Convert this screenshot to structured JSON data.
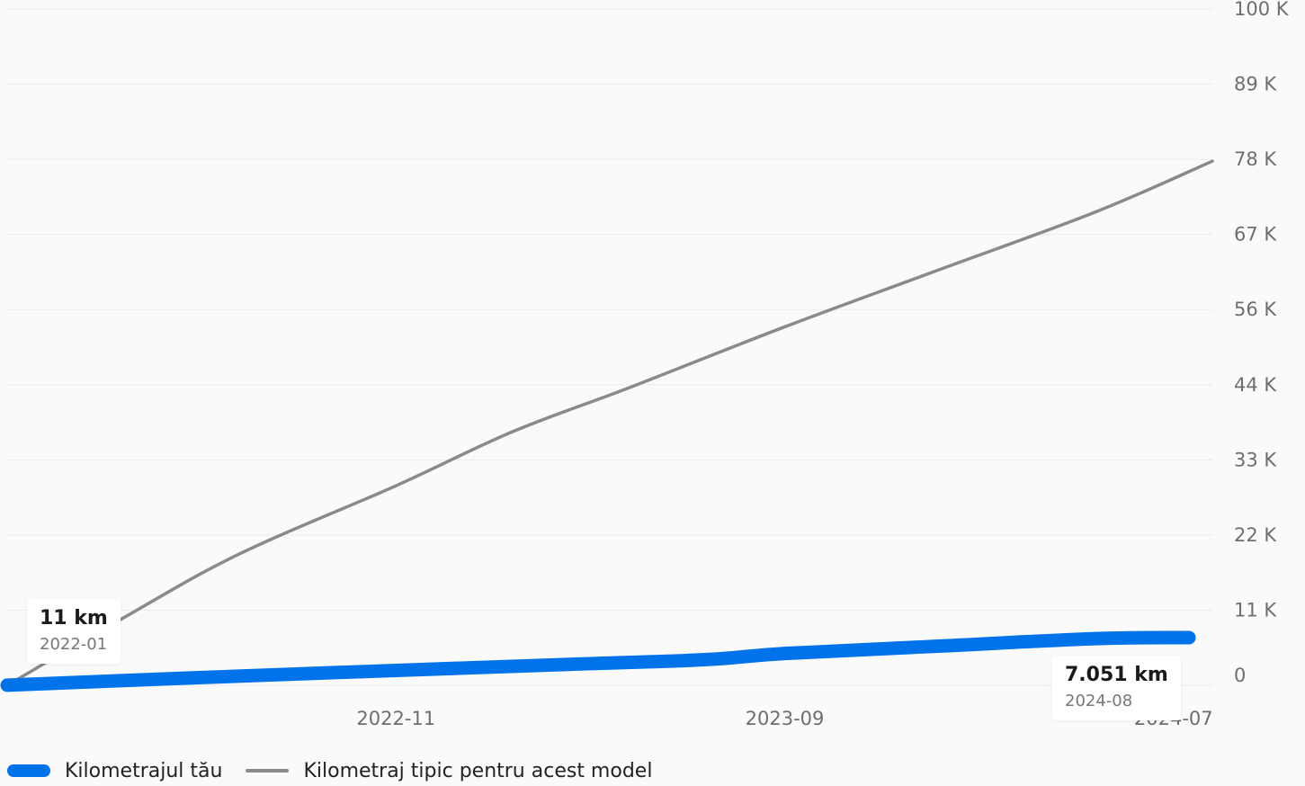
{
  "chart_data": {
    "type": "line",
    "x_axis": {
      "type": "date",
      "range": [
        "2022-01",
        "2024-08"
      ],
      "tick_labels": [
        "2022-11",
        "2023-09",
        "2024-07"
      ]
    },
    "y_axis": {
      "position": "right",
      "range": [
        0,
        100000
      ],
      "tick_values": [
        0,
        11111,
        22222,
        33333,
        44444,
        55556,
        66667,
        77778,
        88889,
        100000
      ],
      "tick_labels": [
        "0",
        "11 K",
        "22 K",
        "33 K",
        "44 K",
        "56 K",
        "67 K",
        "78 K",
        "89 K",
        "100 K"
      ]
    },
    "grid": true,
    "legend_placement": "bottom-left",
    "series": [
      {
        "name": "Kilometrajul tău",
        "color": "#0073ea",
        "style": "thick",
        "points": [
          {
            "x": "2022-01",
            "y": 11
          },
          {
            "x": "2022-06",
            "y": 1150
          },
          {
            "x": "2022-11",
            "y": 2200
          },
          {
            "x": "2023-04",
            "y": 3200
          },
          {
            "x": "2023-07",
            "y": 3800
          },
          {
            "x": "2023-09",
            "y": 4700
          },
          {
            "x": "2024-01",
            "y": 5800
          },
          {
            "x": "2024-05",
            "y": 6900
          },
          {
            "x": "2024-08",
            "y": 7051
          }
        ]
      },
      {
        "name": "Kilometraj tipic pentru acest model",
        "color": "#8a8a8a",
        "style": "thin",
        "points": [
          {
            "x": "2022-01",
            "y": 0
          },
          {
            "x": "2022-04",
            "y": 10000
          },
          {
            "x": "2022-07",
            "y": 19500
          },
          {
            "x": "2022-11",
            "y": 29500
          },
          {
            "x": "2023-02",
            "y": 37500
          },
          {
            "x": "2023-05",
            "y": 44000
          },
          {
            "x": "2023-09",
            "y": 53000
          },
          {
            "x": "2024-01",
            "y": 61500
          },
          {
            "x": "2024-05",
            "y": 70000
          },
          {
            "x": "2024-08",
            "y": 77500
          }
        ]
      }
    ],
    "annotations": [
      {
        "value": "11 km",
        "date": "2022-01",
        "series": 0,
        "point": "first"
      },
      {
        "value": "7.051 km",
        "date": "2024-08",
        "series": 0,
        "point": "last"
      }
    ]
  }
}
